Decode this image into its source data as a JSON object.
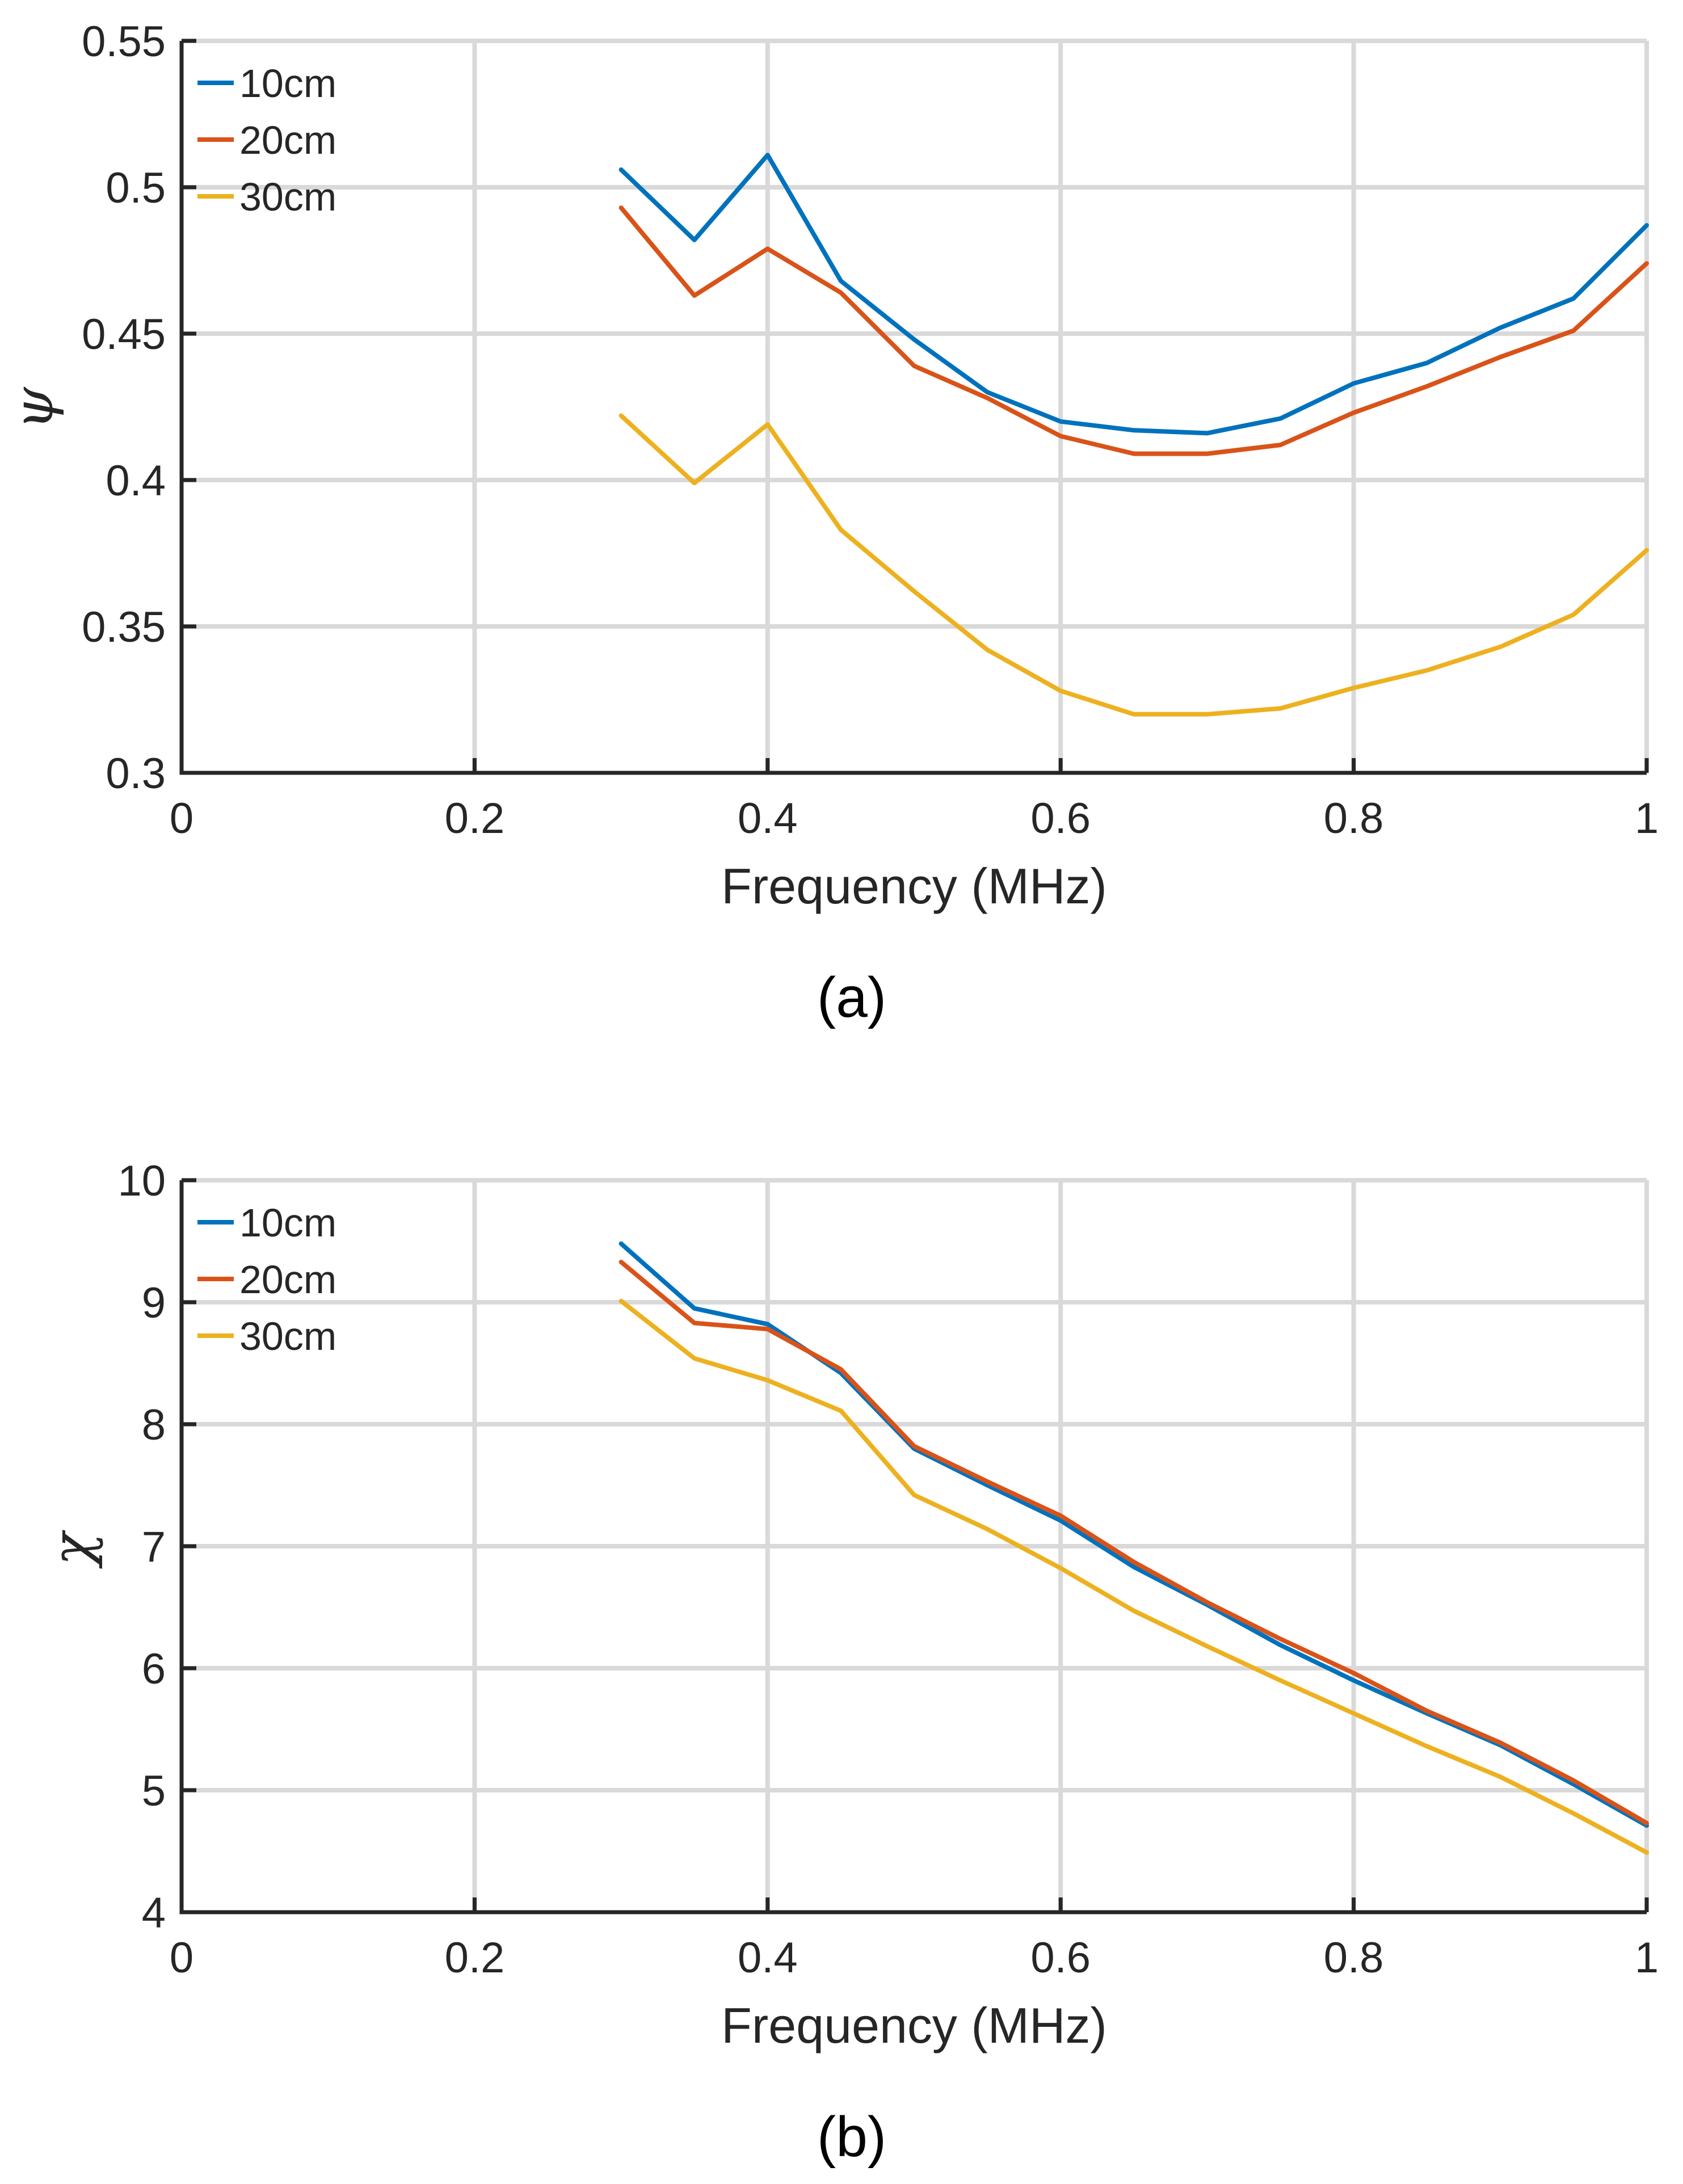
{
  "chart_data": [
    {
      "type": "line",
      "panel": "a",
      "caption": "(a)",
      "xlabel": "Frequency (MHz)",
      "ylabel": "ψ",
      "xlim": [
        0,
        1
      ],
      "ylim": [
        0.3,
        0.55
      ],
      "xticks": [
        0,
        0.2,
        0.4,
        0.6,
        0.8,
        1
      ],
      "xtick_labels": [
        "0",
        "0.2",
        "0.4",
        "0.6",
        "0.8",
        "1"
      ],
      "yticks": [
        0.3,
        0.35,
        0.4,
        0.45,
        0.5,
        0.55
      ],
      "ytick_labels": [
        "0.3",
        "0.35",
        "0.4",
        "0.45",
        "0.5",
        "0.55"
      ],
      "grid": true,
      "legend_position": "top-left",
      "x": [
        0.3,
        0.35,
        0.4,
        0.45,
        0.5,
        0.55,
        0.6,
        0.65,
        0.7,
        0.75,
        0.8,
        0.85,
        0.9,
        0.95,
        1.0
      ],
      "series": [
        {
          "name": "10cm",
          "color": "#0072BD",
          "values": [
            0.506,
            0.482,
            0.511,
            0.468,
            0.448,
            0.43,
            0.42,
            0.417,
            0.416,
            0.421,
            0.433,
            0.44,
            0.452,
            0.462,
            0.487
          ]
        },
        {
          "name": "20cm",
          "color": "#D95319",
          "values": [
            0.493,
            0.463,
            0.479,
            0.464,
            0.439,
            0.428,
            0.415,
            0.409,
            0.409,
            0.412,
            0.423,
            0.432,
            0.442,
            0.451,
            0.474
          ]
        },
        {
          "name": "30cm",
          "color": "#EDB120",
          "values": [
            0.422,
            0.399,
            0.419,
            0.383,
            0.362,
            0.342,
            0.328,
            0.32,
            0.32,
            0.322,
            0.329,
            0.335,
            0.343,
            0.354,
            0.376
          ]
        }
      ]
    },
    {
      "type": "line",
      "panel": "b",
      "caption": "(b)",
      "xlabel": "Frequency (MHz)",
      "ylabel": "χ",
      "xlim": [
        0,
        1
      ],
      "ylim": [
        4,
        10
      ],
      "xticks": [
        0,
        0.2,
        0.4,
        0.6,
        0.8,
        1
      ],
      "xtick_labels": [
        "0",
        "0.2",
        "0.4",
        "0.6",
        "0.8",
        "1"
      ],
      "yticks": [
        4,
        5,
        6,
        7,
        8,
        9,
        10
      ],
      "ytick_labels": [
        "4",
        "5",
        "6",
        "7",
        "8",
        "9",
        "10"
      ],
      "grid": true,
      "legend_position": "top-left",
      "x": [
        0.3,
        0.35,
        0.4,
        0.45,
        0.5,
        0.55,
        0.6,
        0.65,
        0.7,
        0.75,
        0.8,
        0.85,
        0.9,
        0.95,
        1.0
      ],
      "series": [
        {
          "name": "10cm",
          "color": "#0072BD",
          "values": [
            9.48,
            8.95,
            8.82,
            8.42,
            7.8,
            7.5,
            7.21,
            6.83,
            6.52,
            6.19,
            5.9,
            5.63,
            5.37,
            5.05,
            4.71
          ]
        },
        {
          "name": "20cm",
          "color": "#D95319",
          "values": [
            9.33,
            8.83,
            8.78,
            8.45,
            7.82,
            7.53,
            7.25,
            6.87,
            6.54,
            6.24,
            5.96,
            5.65,
            5.39,
            5.08,
            4.73
          ]
        },
        {
          "name": "30cm",
          "color": "#EDB120",
          "values": [
            9.01,
            8.54,
            8.36,
            8.11,
            7.42,
            7.14,
            6.82,
            6.47,
            6.18,
            5.9,
            5.63,
            5.36,
            5.11,
            4.81,
            4.49
          ]
        }
      ]
    }
  ]
}
